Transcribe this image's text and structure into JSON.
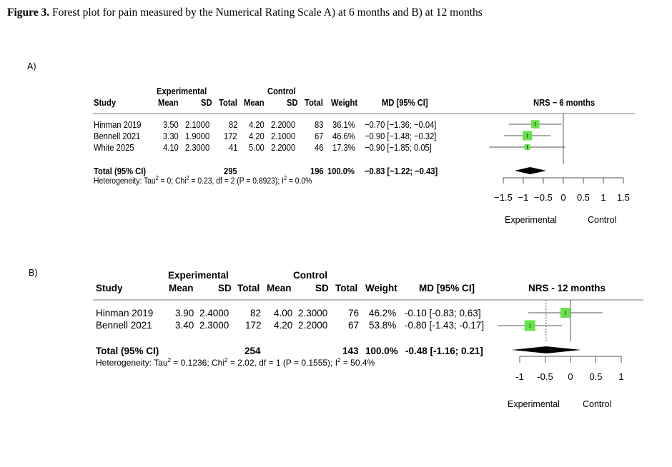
{
  "caption": {
    "bold": "Figure 3.",
    "text": " Forest plot for pain measured by the Numerical Rating Scale A) at 6 months and B) at 12 months"
  },
  "panel_a": {
    "label": "A)",
    "group_exp": "Experimental",
    "group_ctl": "Control",
    "head": {
      "study": "Study",
      "mean_e": "Mean",
      "sd_e": "SD",
      "total_e": "Total",
      "mean_c": "Mean",
      "sd_c": "SD",
      "total_c": "Total",
      "weight": "Weight",
      "md": "MD [95% CI]"
    },
    "rows": [
      {
        "study": "Hinman 2019",
        "mean_e": "3.50",
        "sd_e": "2.1000",
        "total_e": "82",
        "mean_c": "4.20",
        "sd_c": "2.2000",
        "total_c": "83",
        "weight": "36.1%",
        "md": "−0.70 [−1.36; −0.04]"
      },
      {
        "study": "Bennell 2021",
        "mean_e": "3.30",
        "sd_e": "1.9000",
        "total_e": "172",
        "mean_c": "4.20",
        "sd_c": "2.1000",
        "total_c": "67",
        "weight": "46.6%",
        "md": "−0.90 [−1.48; −0.32]"
      },
      {
        "study": "White 2025",
        "mean_e": "4.10",
        "sd_e": "2.3000",
        "total_e": "41",
        "mean_c": "5.00",
        "sd_c": "2.2000",
        "total_c": "46",
        "weight": "17.3%",
        "md": "−0.90 [−1.85; 0.05]"
      }
    ],
    "total": {
      "label": "Total (95% CI)",
      "total_e": "295",
      "total_c": "196",
      "weight": "100.0%",
      "md": "−0.83 [−1.22; −0.43]"
    },
    "het": {
      "p1": "Heterogeneity: Tau",
      "s1": "2",
      "p2": " = 0; Chi",
      "s2": "2",
      "p3": " = 0.23, df = 2 (P = 0.8923); I",
      "s3": "2",
      "p4": " = 0.0%"
    }
  },
  "panel_b": {
    "label": "B)",
    "group_exp": "Experimental",
    "group_ctl": "Control",
    "head": {
      "study": "Study",
      "mean_e": "Mean",
      "sd_e": "SD",
      "total_e": "Total",
      "mean_c": "Mean",
      "sd_c": "SD",
      "total_c": "Total",
      "weight": "Weight",
      "md": "MD [95% CI]"
    },
    "rows": [
      {
        "study": "Hinman 2019",
        "mean_e": "3.90",
        "sd_e": "2.4000",
        "total_e": "82",
        "mean_c": "4.00",
        "sd_c": "2.3000",
        "total_c": "76",
        "weight": "46.2%",
        "md": "-0.10 [-0.83; 0.63]"
      },
      {
        "study": "Bennell 2021",
        "mean_e": "3.40",
        "sd_e": "2.3000",
        "total_e": "172",
        "mean_c": "4.20",
        "sd_c": "2.2000",
        "total_c": "67",
        "weight": "53.8%",
        "md": "-0.80 [-1.43; -0.17]"
      }
    ],
    "total": {
      "label": "Total (95% CI)",
      "total_e": "254",
      "total_c": "143",
      "weight": "100.0%",
      "md": "-0.48 [-1.16; 0.21]"
    },
    "het": {
      "p1": "Heterogeneity: Tau",
      "s1": "2",
      "p2": " = 0.1236; Chi",
      "s2": "2",
      "p3": " = 2.02, df = 1 (P = 0.1555); I",
      "s3": "2",
      "p4": " = 50.4%"
    }
  },
  "chart_data": [
    {
      "type": "forest",
      "title": "NRS − 6 months",
      "xlabel_left": "Experimental",
      "xlabel_right": "Control",
      "xlim": [
        -1.5,
        1.5
      ],
      "ticks": [
        -1.5,
        -1,
        -0.5,
        0,
        0.5,
        1,
        1.5
      ],
      "tick_labels": [
        "−1.5",
        "−1",
        "−0.5",
        "0",
        "0.5",
        "1",
        "1.5"
      ],
      "pooled_dashed_line": false,
      "studies": [
        {
          "name": "Hinman 2019",
          "md": -0.7,
          "lo": -1.36,
          "hi": -0.04,
          "weight": 36.1
        },
        {
          "name": "Bennell 2021",
          "md": -0.9,
          "lo": -1.48,
          "hi": -0.32,
          "weight": 46.6
        },
        {
          "name": "White 2025",
          "md": -0.9,
          "lo": -1.85,
          "hi": 0.05,
          "weight": 17.3
        }
      ],
      "pooled": {
        "md": -0.83,
        "lo": -1.22,
        "hi": -0.43
      },
      "square_color": "#66e24a"
    },
    {
      "type": "forest",
      "title": "NRS - 12 months",
      "xlabel_left": "Experimental",
      "xlabel_right": "Control",
      "xlim": [
        -1,
        1
      ],
      "ticks": [
        -1,
        -0.5,
        0,
        0.5,
        1
      ],
      "tick_labels": [
        "-1",
        "-0.5",
        "0",
        "0.5",
        "1"
      ],
      "pooled_dashed_line": true,
      "studies": [
        {
          "name": "Hinman 2019",
          "md": -0.1,
          "lo": -0.83,
          "hi": 0.63,
          "weight": 46.2
        },
        {
          "name": "Bennell 2021",
          "md": -0.8,
          "lo": -1.43,
          "hi": -0.17,
          "weight": 53.8
        }
      ],
      "pooled": {
        "md": -0.48,
        "lo": -1.16,
        "hi": 0.21
      },
      "square_color": "#66e24a"
    }
  ]
}
